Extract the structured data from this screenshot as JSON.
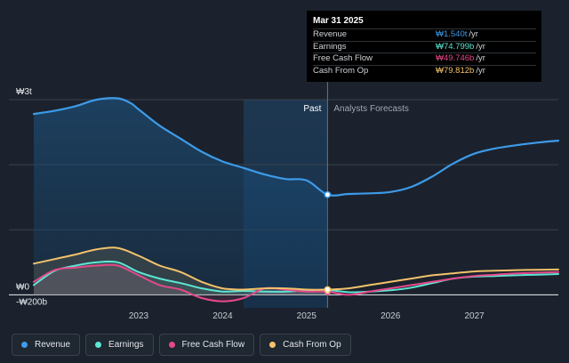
{
  "tooltip": {
    "date": "Mar 31 2025",
    "rows": [
      {
        "label": "Revenue",
        "value": "₩1.540t",
        "unit": "/yr",
        "color": "#3d9be9"
      },
      {
        "label": "Earnings",
        "value": "₩74.799b",
        "unit": "/yr",
        "color": "#5ce6d4"
      },
      {
        "label": "Free Cash Flow",
        "value": "₩49.746b",
        "unit": "/yr",
        "color": "#e6488a"
      },
      {
        "label": "Cash From Op",
        "value": "₩79.812b",
        "unit": "/yr",
        "color": "#f3c26b"
      }
    ]
  },
  "legend": [
    {
      "label": "Revenue",
      "color": "#3d9be9"
    },
    {
      "label": "Earnings",
      "color": "#5ce6d4"
    },
    {
      "label": "Free Cash Flow",
      "color": "#e6488a"
    },
    {
      "label": "Cash From Op",
      "color": "#f3c26b"
    }
  ],
  "chart_data": {
    "type": "area",
    "y_tick_labels": {
      "top": "₩3t",
      "zero": "₩0",
      "bottom": "-₩200b"
    },
    "regions": {
      "past": "Past",
      "forecast": "Analysts Forecasts"
    },
    "divider_x": 2025.25,
    "highlight_start_x": 2024.25,
    "xlim": [
      2021.75,
      2028.0
    ],
    "ylim": [
      -0.2,
      3.0
    ],
    "x_ticks": [
      2023,
      2024,
      2025,
      2026,
      2027
    ],
    "x_tick_labels": [
      "2023",
      "2024",
      "2025",
      "2026",
      "2027"
    ],
    "grid": true,
    "series": [
      {
        "name": "Revenue",
        "color": "#3d9be9",
        "x": [
          2021.75,
          2022.0,
          2022.25,
          2022.5,
          2022.75,
          2022.9,
          2023.0,
          2023.25,
          2023.5,
          2023.75,
          2024.0,
          2024.25,
          2024.5,
          2024.75,
          2025.0,
          2025.25,
          2025.5,
          2025.75,
          2026.0,
          2026.25,
          2026.5,
          2026.75,
          2027.0,
          2027.25,
          2027.5,
          2027.75,
          2028.0
        ],
        "y": [
          2.78,
          2.83,
          2.9,
          3.0,
          3.02,
          2.95,
          2.85,
          2.6,
          2.4,
          2.2,
          2.05,
          1.95,
          1.85,
          1.78,
          1.76,
          1.54,
          1.55,
          1.56,
          1.58,
          1.66,
          1.82,
          2.02,
          2.17,
          2.25,
          2.3,
          2.34,
          2.37
        ]
      },
      {
        "name": "Earnings",
        "color": "#5ce6d4",
        "x": [
          2021.75,
          2022.0,
          2022.25,
          2022.5,
          2022.75,
          2023.0,
          2023.25,
          2023.5,
          2023.75,
          2024.0,
          2024.25,
          2024.5,
          2024.75,
          2025.0,
          2025.25,
          2025.5,
          2025.75,
          2026.0,
          2026.25,
          2026.5,
          2026.75,
          2027.0,
          2027.25,
          2027.5,
          2027.75,
          2028.0
        ],
        "y": [
          0.15,
          0.37,
          0.45,
          0.5,
          0.5,
          0.35,
          0.25,
          0.18,
          0.1,
          0.05,
          0.06,
          0.05,
          0.05,
          0.07,
          0.075,
          0.04,
          0.05,
          0.07,
          0.11,
          0.18,
          0.25,
          0.28,
          0.29,
          0.3,
          0.31,
          0.32
        ]
      },
      {
        "name": "Free Cash Flow",
        "color": "#e6488a",
        "x": [
          2021.75,
          2022.0,
          2022.25,
          2022.5,
          2022.75,
          2023.0,
          2023.25,
          2023.5,
          2023.75,
          2024.0,
          2024.25,
          2024.5,
          2024.75,
          2025.0,
          2025.25,
          2025.5,
          2025.75,
          2026.0,
          2026.25,
          2026.5,
          2026.75,
          2027.0,
          2027.25,
          2027.5,
          2027.75,
          2028.0
        ],
        "y": [
          0.2,
          0.38,
          0.42,
          0.45,
          0.45,
          0.3,
          0.15,
          0.08,
          -0.05,
          -0.1,
          -0.05,
          0.1,
          0.08,
          0.05,
          0.05,
          0.0,
          0.05,
          0.1,
          0.15,
          0.2,
          0.25,
          0.29,
          0.31,
          0.33,
          0.34,
          0.35
        ]
      },
      {
        "name": "Cash From Op",
        "color": "#f3c26b",
        "x": [
          2021.75,
          2022.0,
          2022.25,
          2022.5,
          2022.75,
          2023.0,
          2023.25,
          2023.5,
          2023.75,
          2024.0,
          2024.25,
          2024.5,
          2024.75,
          2025.0,
          2025.25,
          2025.5,
          2025.75,
          2026.0,
          2026.25,
          2026.5,
          2026.75,
          2027.0,
          2027.25,
          2027.5,
          2027.75,
          2028.0
        ],
        "y": [
          0.48,
          0.55,
          0.62,
          0.7,
          0.72,
          0.6,
          0.45,
          0.35,
          0.2,
          0.1,
          0.08,
          0.1,
          0.1,
          0.08,
          0.08,
          0.1,
          0.15,
          0.2,
          0.25,
          0.3,
          0.33,
          0.36,
          0.37,
          0.38,
          0.385,
          0.39
        ]
      }
    ]
  }
}
